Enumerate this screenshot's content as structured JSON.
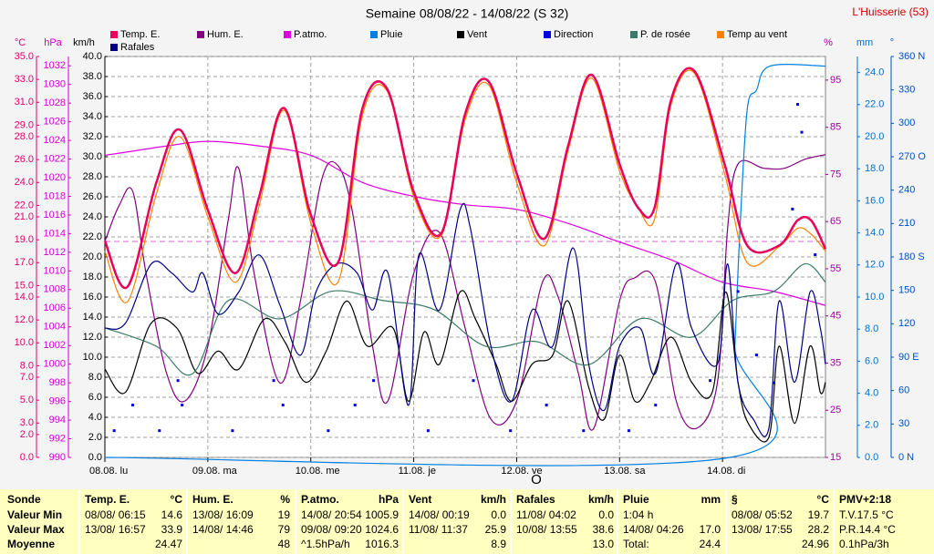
{
  "chart_data": {
    "type": "line",
    "title": "Semaine 08/08/22 - 14/08/22 (S 32)",
    "station": "L'Huisserie (53)",
    "annotation": "O",
    "xlim": [
      0,
      7
    ],
    "xticks": [
      {
        "value": 0,
        "label": "08.08. lu"
      },
      {
        "value": 1,
        "label": "09.08. ma"
      },
      {
        "value": 2,
        "label": "10.08. me"
      },
      {
        "value": 3,
        "label": "11.08. je"
      },
      {
        "value": 4,
        "label": "12.08. ve"
      },
      {
        "value": 5,
        "label": "13.08. sa"
      },
      {
        "value": 6,
        "label": "14.08. di"
      }
    ],
    "grid": true,
    "grid_axis": "km/h",
    "axes": [
      {
        "label": "°C",
        "ylim": [
          0,
          35
        ],
        "yticks": [
          {
            "value": 0,
            "label": "0.0"
          },
          {
            "value": 2,
            "label": "2.0"
          },
          {
            "value": 3,
            "label": "3.0"
          },
          {
            "value": 5,
            "label": "5.0"
          },
          {
            "value": 7,
            "label": "7.0"
          },
          {
            "value": 8,
            "label": "8.0"
          },
          {
            "value": 10,
            "label": "10.0"
          },
          {
            "value": 12,
            "label": "12.0"
          },
          {
            "value": 14,
            "label": "14.0"
          },
          {
            "value": 15,
            "label": "15.0"
          },
          {
            "value": 17,
            "label": "17.0"
          },
          {
            "value": 19,
            "label": "19.0"
          },
          {
            "value": 21,
            "label": "21.0"
          },
          {
            "value": 22,
            "label": "22.0"
          },
          {
            "value": 24,
            "label": "24.0"
          },
          {
            "value": 26,
            "label": "26.0"
          },
          {
            "value": 28,
            "label": "28.0"
          },
          {
            "value": 29,
            "label": "29.0"
          },
          {
            "value": 31,
            "label": "31.0"
          },
          {
            "value": 33,
            "label": "33.0"
          },
          {
            "value": 35,
            "label": "35.0"
          }
        ]
      },
      {
        "label": "hPa",
        "ylim": [
          990,
          1033
        ],
        "yticks": [
          990,
          992,
          994,
          996,
          998,
          1000,
          1002,
          1004,
          1006,
          1008,
          1010,
          1012,
          1014,
          1016,
          1018,
          1020,
          1022,
          1024,
          1026,
          1028,
          1030,
          1032
        ]
      },
      {
        "label": "km/h",
        "ylim": [
          0,
          40
        ],
        "yticks": [
          {
            "value": 0,
            "label": "0.0"
          },
          {
            "value": 2,
            "label": "2.0"
          },
          {
            "value": 4,
            "label": "4.0"
          },
          {
            "value": 6,
            "label": "6.0"
          },
          {
            "value": 8,
            "label": "8.0"
          },
          {
            "value": 10,
            "label": "10.0"
          },
          {
            "value": 12,
            "label": "12.0"
          },
          {
            "value": 14,
            "label": "14.0"
          },
          {
            "value": 16,
            "label": "16.0"
          },
          {
            "value": 18,
            "label": "18.0"
          },
          {
            "value": 20,
            "label": "20.0"
          },
          {
            "value": 22,
            "label": "22.0"
          },
          {
            "value": 24,
            "label": "24.0"
          },
          {
            "value": 26,
            "label": "26.0"
          },
          {
            "value": 28,
            "label": "28.0"
          },
          {
            "value": 30,
            "label": "30.0"
          },
          {
            "value": 32,
            "label": "32.0"
          },
          {
            "value": 34,
            "label": "34.0"
          },
          {
            "value": 36,
            "label": "36.0"
          },
          {
            "value": 38,
            "label": "38.0"
          },
          {
            "value": 40,
            "label": "40.0"
          }
        ]
      },
      {
        "label": "%",
        "ylim": [
          15,
          100
        ],
        "yticks": [
          15,
          25,
          35,
          45,
          55,
          65,
          75,
          85,
          95
        ]
      },
      {
        "label": "mm",
        "ylim": [
          0,
          25
        ],
        "yticks": [
          {
            "value": 0,
            "label": "0.0"
          },
          {
            "value": 2,
            "label": "2.0"
          },
          {
            "value": 4,
            "label": "4.0"
          },
          {
            "value": 6,
            "label": "6.0"
          },
          {
            "value": 8,
            "label": "8.0"
          },
          {
            "value": 10,
            "label": "10.0"
          },
          {
            "value": 12,
            "label": "12.0"
          },
          {
            "value": 14,
            "label": "14.0"
          },
          {
            "value": 16,
            "label": "16.0"
          },
          {
            "value": 18,
            "label": "18.0"
          },
          {
            "value": 20,
            "label": "20.0"
          },
          {
            "value": 22,
            "label": "22.0"
          },
          {
            "value": 24,
            "label": "24.0"
          }
        ]
      },
      {
        "label": "°",
        "ylim": [
          0,
          360
        ],
        "yticks": [
          {
            "value": 0,
            "label": "0 N"
          },
          30,
          60,
          {
            "value": 90,
            "label": "90 E"
          },
          120,
          150,
          {
            "value": 180,
            "label": "180 S"
          },
          210,
          240,
          {
            "value": 270,
            "label": "270 O"
          },
          300,
          330,
          {
            "value": 360,
            "label": "360 N"
          }
        ]
      }
    ],
    "series": [
      {
        "name": "Temp. E.",
        "color": "#e8005a",
        "axis": "°C",
        "x": [
          0,
          0.22,
          0.5,
          0.73,
          1.0,
          1.27,
          1.5,
          1.74,
          2.0,
          2.27,
          2.5,
          2.74,
          3.0,
          3.27,
          3.5,
          3.73,
          4.0,
          4.27,
          4.5,
          4.73,
          5.0,
          5.18,
          5.34,
          5.5,
          5.73,
          6.02,
          6.24,
          6.55,
          6.73,
          6.86,
          7.0
        ],
        "values": [
          18.9,
          14.9,
          24.0,
          28.6,
          21.6,
          16.1,
          22.8,
          30.5,
          21.2,
          17.1,
          30.4,
          32.2,
          23.2,
          19.6,
          30.0,
          32.8,
          24.8,
          19.1,
          27.2,
          33.4,
          25.6,
          21.8,
          21.8,
          31.2,
          33.7,
          25.6,
          18.5,
          18.5,
          20.7,
          20.7,
          18.2
        ]
      },
      {
        "name": "Hum. E.",
        "color": "#800080",
        "axis": "%",
        "x": [
          0,
          0.14,
          0.27,
          0.4,
          0.6,
          0.78,
          1.0,
          1.2,
          1.3,
          1.45,
          1.7,
          1.9,
          2.1,
          2.25,
          2.4,
          2.6,
          2.75,
          3.0,
          3.25,
          3.5,
          3.75,
          4.0,
          4.25,
          4.4,
          4.6,
          4.75,
          5.0,
          5.15,
          5.35,
          5.55,
          5.75,
          5.95,
          6.05,
          6.15,
          6.4,
          6.6,
          6.8,
          7.0
        ],
        "values": [
          60.8,
          68.5,
          71.4,
          54,
          32.8,
          27,
          38.6,
          65.6,
          76.3,
          54,
          30.8,
          48.2,
          73.4,
          77.2,
          67.6,
          38.6,
          27,
          54,
          62.7,
          42.4,
          23.1,
          27,
          52.1,
          49.2,
          32.8,
          21.2,
          48.2,
          53.1,
          52.1,
          27,
          21.2,
          30.8,
          63.7,
          77.2,
          76.3,
          76.3,
          78.2,
          79.2
        ]
      },
      {
        "name": "P.atmo.",
        "color": "#e000e0",
        "axis": "hPa",
        "x": [
          0,
          0.3,
          0.6,
          1.0,
          1.5,
          2.0,
          2.5,
          3.0,
          3.5,
          4.0,
          4.5,
          5.0,
          5.5,
          6.0,
          6.5,
          7.0
        ],
        "values": [
          1022.4,
          1022.9,
          1023.4,
          1023.9,
          1023.4,
          1022.4,
          1019.5,
          1018.0,
          1017.1,
          1016.6,
          1015.1,
          1013.1,
          1011.2,
          1008.8,
          1007.8,
          1006.3
        ]
      },
      {
        "name": "Pluie",
        "color": "#0080e0",
        "axis": "mm",
        "x": [
          0,
          6.07,
          6.12,
          6.17,
          6.24,
          6.33,
          6.46,
          7.0
        ],
        "values": [
          0,
          0,
          6.9,
          14.3,
          21.7,
          22.9,
          24.4,
          24.4
        ]
      },
      {
        "name": "Vent",
        "color": "#000000",
        "axis": "km/h",
        "x": [
          0,
          0.2,
          0.45,
          0.7,
          0.9,
          1.1,
          1.3,
          1.55,
          1.75,
          1.95,
          2.15,
          2.35,
          2.55,
          2.8,
          2.95,
          3.1,
          3.25,
          3.45,
          3.6,
          3.8,
          3.95,
          4.15,
          4.35,
          4.5,
          4.7,
          4.85,
          5.0,
          5.15,
          5.3,
          5.5,
          5.7,
          5.9,
          6.03,
          6.15,
          6.25,
          6.45,
          6.55,
          6.7,
          6.85,
          6.95,
          7.0
        ],
        "values": [
          8.8,
          6.5,
          13.4,
          12.9,
          8.4,
          10.6,
          8.8,
          13.8,
          11.5,
          7.5,
          10.6,
          15.6,
          11.1,
          12.9,
          5.6,
          12.5,
          9.3,
          16.5,
          13.8,
          9.3,
          5.6,
          9.3,
          10.2,
          15.6,
          7.0,
          3.8,
          10.2,
          5.6,
          7.5,
          12.0,
          7.5,
          6.5,
          16.5,
          7.5,
          3.4,
          2.0,
          11.1,
          3.4,
          11.1,
          6.5,
          7.5
        ]
      },
      {
        "name": "Direction",
        "color": "#0000e0",
        "axis": "°",
        "mode": "markers",
        "x": [
          0.09,
          0.27,
          0.53,
          0.71,
          0.75,
          1.24,
          1.64,
          1.73,
          2.17,
          2.43,
          2.61,
          3.14,
          3.58,
          3.94,
          4.29,
          4.65,
          5.09,
          5.35,
          5.88,
          6.15,
          6.33,
          6.5,
          6.68,
          6.73,
          6.77,
          6.9
        ],
        "values": [
          24,
          47,
          24,
          69,
          47,
          24,
          69,
          47,
          24,
          47,
          69,
          24,
          69,
          24,
          47,
          24,
          24,
          47,
          69,
          149,
          92,
          67,
          223,
          317,
          292,
          182
        ]
      },
      {
        "name": "P. de rosée",
        "color": "#3b7a6a",
        "axis": "°C",
        "x": [
          0,
          0.5,
          0.85,
          1.2,
          1.7,
          2.2,
          2.7,
          3.2,
          3.7,
          4.2,
          4.7,
          5.2,
          5.7,
          6.1,
          6.5,
          6.8,
          7.0
        ],
        "values": [
          11.3,
          9.7,
          7.3,
          13.7,
          12.1,
          14.5,
          13.7,
          12.9,
          9.7,
          10.1,
          8.1,
          12.1,
          10.5,
          13.7,
          14.5,
          16.9,
          15.3
        ]
      },
      {
        "name": "Temp au vent",
        "color": "#ff8000",
        "axis": "°C",
        "x": [
          0,
          0.22,
          0.5,
          0.73,
          1.0,
          1.27,
          1.5,
          1.74,
          2.0,
          2.27,
          2.5,
          2.74,
          3.0,
          3.27,
          3.5,
          3.73,
          4.0,
          4.27,
          4.5,
          4.73,
          5.0,
          5.18,
          5.34,
          5.5,
          5.73,
          6.02,
          6.24,
          6.55,
          6.73,
          6.86,
          7.0
        ],
        "values": [
          18.0,
          13.6,
          23.0,
          28.0,
          21.0,
          15.3,
          22.0,
          30.3,
          20.5,
          15.4,
          29.8,
          32.0,
          22.8,
          19.4,
          29.5,
          32.5,
          24.0,
          18.5,
          26.8,
          33.1,
          25.0,
          21.8,
          20.8,
          30.8,
          33.5,
          24.8,
          17.0,
          18.4,
          20.0,
          19.5,
          18.0
        ]
      },
      {
        "name": "Rafales",
        "color": "#000080",
        "axis": "km/h",
        "x": [
          0,
          0.2,
          0.45,
          0.65,
          0.85,
          0.95,
          1.1,
          1.3,
          1.5,
          1.7,
          1.9,
          2.05,
          2.25,
          2.45,
          2.6,
          2.75,
          2.95,
          3.05,
          3.25,
          3.45,
          3.55,
          3.75,
          3.95,
          4.15,
          4.35,
          4.55,
          4.7,
          4.85,
          5.0,
          5.2,
          5.35,
          5.55,
          5.7,
          5.95,
          6.05,
          6.15,
          6.3,
          6.45,
          6.55,
          6.7,
          6.85,
          6.95,
          7.0
        ],
        "values": [
          12.9,
          13.4,
          19.3,
          18.4,
          16.5,
          18.4,
          14.3,
          16.5,
          20.2,
          15.2,
          10.2,
          16.5,
          19.3,
          18.4,
          14.7,
          18.4,
          5.2,
          20.2,
          14.7,
          24.7,
          22.9,
          11.1,
          5.6,
          14.7,
          11.1,
          20.9,
          9.3,
          4.7,
          11.1,
          12.9,
          8.4,
          19.3,
          12.9,
          9.3,
          19.3,
          7.5,
          3.8,
          2.9,
          15.6,
          7.5,
          16.5,
          12.9,
          9.3
        ]
      }
    ]
  },
  "stats_table": {
    "row_labels": [
      "Sonde",
      "Valeur Min",
      "Valeur Max",
      "Moyenne"
    ],
    "columns": [
      {
        "title": "Temp. E.",
        "unit": "°C",
        "rows": [
          {
            "left": "08/08/ 06:15",
            "right": "14.6"
          },
          {
            "left": "13/08/ 16:57",
            "right": "33.9"
          },
          {
            "right": "24.47"
          }
        ]
      },
      {
        "title": "Hum. E.",
        "unit": "%",
        "rows": [
          {
            "left": "13/08/ 16:09",
            "right": "19"
          },
          {
            "left": "14/08/ 14:46",
            "right": "79"
          },
          {
            "right": "48"
          }
        ]
      },
      {
        "title": "P.atmo.",
        "unit": "hPa",
        "rows": [
          {
            "left": "14/08/ 20:54",
            "right": "1005.9"
          },
          {
            "left": "09/08/ 09:20",
            "right": "1024.6"
          },
          {
            "left": "^1.5hPa/h",
            "right": "1016.3"
          }
        ]
      },
      {
        "title": "Vent",
        "unit": "km/h",
        "rows": [
          {
            "left": "14/08/ 00:19",
            "right": "0.0"
          },
          {
            "left": "11/08/ 11:37",
            "right": "25.9"
          },
          {
            "right": "8.9"
          }
        ]
      },
      {
        "title": "Rafales",
        "unit": "km/h",
        "rows": [
          {
            "left": "11/08/ 04:02",
            "right": "0.0"
          },
          {
            "left": "10/08/ 13:55",
            "right": "38.6"
          },
          {
            "right": "13.0"
          }
        ]
      },
      {
        "title": "Pluie",
        "unit": "mm",
        "rows": [
          {
            "left": "1:04 h"
          },
          {
            "left": "14/08/ 04:26",
            "right": "17.0"
          },
          {
            "left": "Total:",
            "right": "24.4"
          }
        ]
      },
      {
        "title": "§",
        "unit": "°C",
        "rows": [
          {
            "left": "08/08/ 05:52",
            "right": "19.7"
          },
          {
            "left": "13/08/ 17:55",
            "right": "28.2"
          },
          {
            "right": "24.96"
          }
        ]
      },
      {
        "title": "PMV+2:18",
        "rows": [
          {
            "left": "T.V.17.5 °C"
          },
          {
            "left": "P.R.14.4 °C"
          },
          {
            "left": "0.1hPa/3h"
          }
        ]
      }
    ]
  }
}
